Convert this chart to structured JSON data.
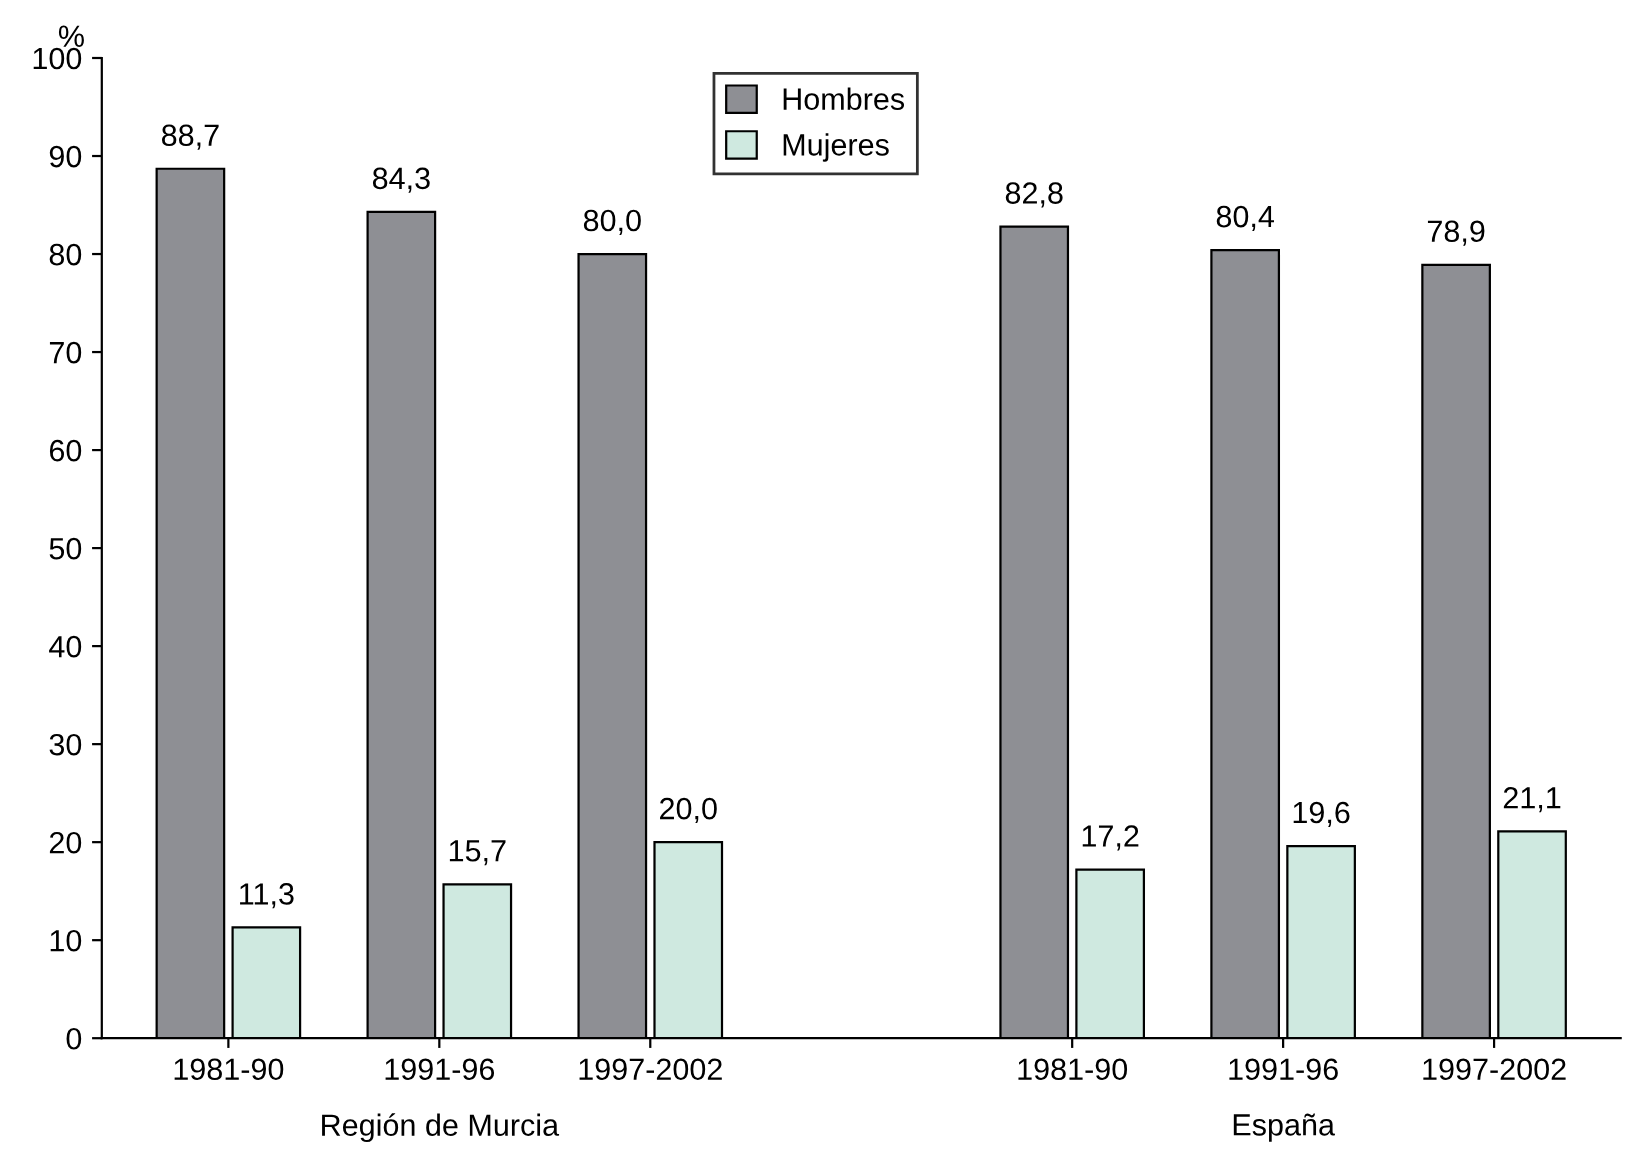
{
  "chart_data": {
    "type": "bar",
    "ylabel": "%",
    "categories": [
      "1981-90",
      "1991-96",
      "1997-2002",
      null,
      "1981-90",
      "1991-96",
      "1997-2002"
    ],
    "series": [
      {
        "name": "Hombres",
        "color": "#8e8f94",
        "values": [
          88.7,
          84.3,
          80.0,
          null,
          82.8,
          80.4,
          78.9
        ],
        "value_labels": [
          "88,7",
          "84,3",
          "80,0",
          null,
          "82,8",
          "80,4",
          "78,9"
        ]
      },
      {
        "name": "Mujeres",
        "color": "#cfe9e0",
        "values": [
          11.3,
          15.7,
          20.0,
          null,
          17.2,
          19.6,
          21.1
        ],
        "value_labels": [
          "11,3",
          "15,7",
          "20,0",
          null,
          "17,2",
          "19,6",
          "21,1"
        ]
      }
    ],
    "annotations": [
      "Región de Murcia",
      "España"
    ],
    "ylim": [
      0,
      100
    ],
    "yticks": [
      0,
      10,
      20,
      30,
      40,
      50,
      60,
      70,
      80,
      90,
      100
    ],
    "grid": false,
    "legend": "top"
  }
}
